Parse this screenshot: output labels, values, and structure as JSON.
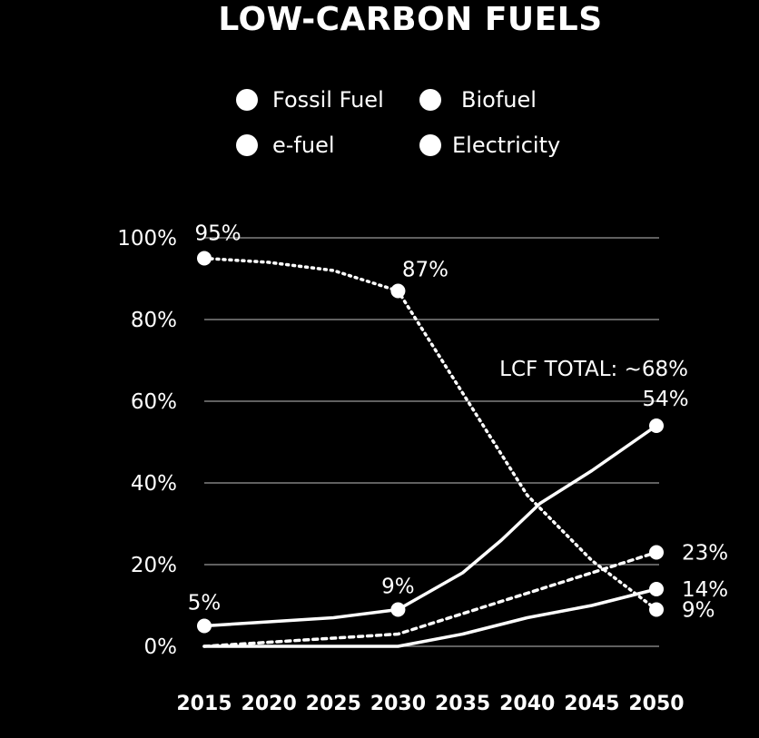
{
  "chart_data": {
    "type": "line",
    "title": "LOW-CARBON FUELS",
    "xlabel": "",
    "ylabel": "",
    "x": [
      2015,
      2020,
      2025,
      2030,
      2035,
      2040,
      2045,
      2050
    ],
    "xlim": [
      2015,
      2050
    ],
    "ylim": [
      0,
      100
    ],
    "y_ticks": [
      {
        "value": 0,
        "label": "0%"
      },
      {
        "value": 20,
        "label": "20%"
      },
      {
        "value": 40,
        "label": "40%"
      },
      {
        "value": 60,
        "label": "60%"
      },
      {
        "value": 80,
        "label": "80%"
      },
      {
        "value": 100,
        "label": "100%"
      }
    ],
    "x_ticks": [
      {
        "value": 2015,
        "label": "2015"
      },
      {
        "value": 2020,
        "label": "2020"
      },
      {
        "value": 2025,
        "label": "2025"
      },
      {
        "value": 2030,
        "label": "2030"
      },
      {
        "value": 2035,
        "label": "2035"
      },
      {
        "value": 2040,
        "label": "2040"
      },
      {
        "value": 2045,
        "label": "2045"
      },
      {
        "value": 2050,
        "label": "2050"
      }
    ],
    "grid": true,
    "legend_position": "top",
    "legend": [
      "Fossil Fuel",
      "Biofuel",
      "e-fuel",
      "Electricity"
    ],
    "series": [
      {
        "name": "Fossil Fuel",
        "style": "dotted",
        "points": [
          [
            2015,
            95
          ],
          [
            2020,
            94
          ],
          [
            2025,
            92
          ],
          [
            2030,
            87
          ],
          [
            2035,
            62
          ],
          [
            2040,
            37
          ],
          [
            2045,
            21
          ],
          [
            2050,
            9
          ]
        ],
        "labels": [
          {
            "x": 2015,
            "y": 95,
            "text": "95%"
          },
          {
            "x": 2030,
            "y": 87,
            "text": "87%"
          },
          {
            "x": 2050,
            "y": 9,
            "text": "9%"
          }
        ]
      },
      {
        "name": "Biofuel",
        "style": "solid",
        "points": [
          [
            2015,
            5
          ],
          [
            2020,
            6
          ],
          [
            2025,
            7
          ],
          [
            2030,
            9
          ],
          [
            2035,
            18
          ],
          [
            2038,
            26
          ],
          [
            2041,
            35
          ],
          [
            2045,
            43
          ],
          [
            2050,
            54
          ]
        ],
        "labels": [
          {
            "x": 2015,
            "y": 5,
            "text": "5%"
          },
          {
            "x": 2030,
            "y": 9,
            "text": "9%"
          },
          {
            "x": 2050,
            "y": 54,
            "text": "54%"
          }
        ]
      },
      {
        "name": "e-fuel",
        "style": "dashed",
        "points": [
          [
            2015,
            0
          ],
          [
            2020,
            1
          ],
          [
            2025,
            2
          ],
          [
            2030,
            3
          ],
          [
            2035,
            8
          ],
          [
            2040,
            13
          ],
          [
            2045,
            18
          ],
          [
            2050,
            23
          ]
        ],
        "labels": [
          {
            "x": 2050,
            "y": 23,
            "text": "23%"
          }
        ]
      },
      {
        "name": "Electricity",
        "style": "solid",
        "points": [
          [
            2015,
            0
          ],
          [
            2020,
            0
          ],
          [
            2025,
            0
          ],
          [
            2030,
            0
          ],
          [
            2035,
            3
          ],
          [
            2040,
            7
          ],
          [
            2045,
            10
          ],
          [
            2050,
            14
          ]
        ],
        "labels": [
          {
            "x": 2050,
            "y": 14,
            "text": "14%"
          }
        ]
      }
    ],
    "annotations": [
      {
        "text": "LCF TOTAL: ~68%",
        "x": 2050,
        "y": 68
      }
    ]
  },
  "colors": {
    "background": "#000000",
    "foreground": "#ffffff",
    "grid": "#9a9a9a"
  }
}
